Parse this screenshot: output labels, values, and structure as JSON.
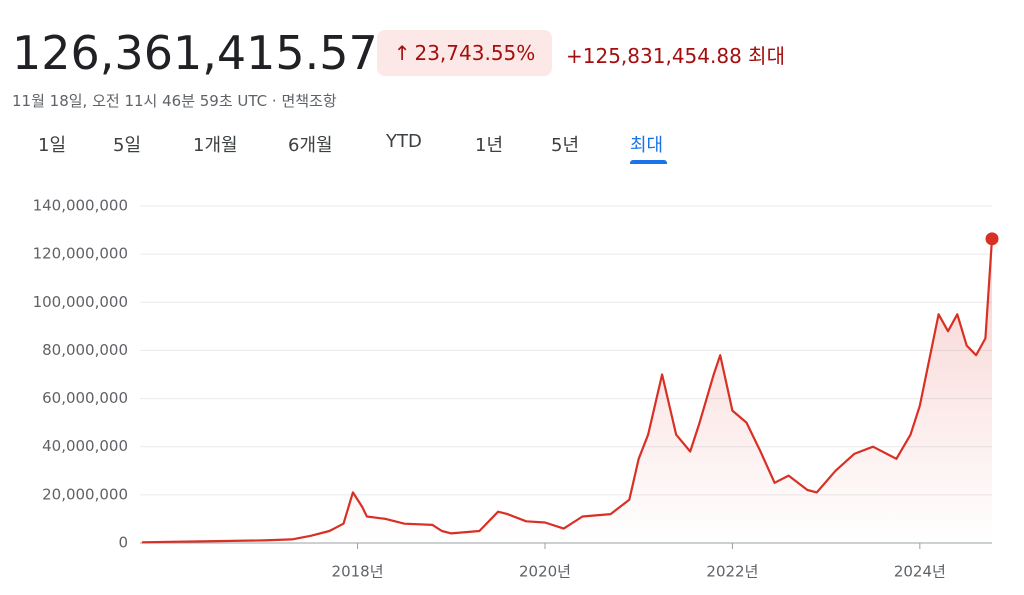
{
  "header": {
    "price": "126,361,415.57",
    "change_percent": "23,743.55%",
    "change_value": "+125,831,454.88",
    "period": "최대",
    "timestamp": "11월 18일, 오전 11시 46분 59초 UTC",
    "disclaimer": "면책조항"
  },
  "tabs": [
    "1일",
    "5일",
    "1개월",
    "6개월",
    "YTD",
    "1년",
    "5년",
    "최대"
  ],
  "chart_data": {
    "type": "line",
    "x": [
      2015.7,
      2016.0,
      2016.5,
      2017.0,
      2017.3,
      2017.5,
      2017.7,
      2017.85,
      2017.95,
      2018.05,
      2018.1,
      2018.3,
      2018.5,
      2018.8,
      2018.9,
      2019.0,
      2019.3,
      2019.5,
      2019.6,
      2019.8,
      2020.0,
      2020.2,
      2020.4,
      2020.7,
      2020.9,
      2021.0,
      2021.1,
      2021.25,
      2021.4,
      2021.55,
      2021.65,
      2021.8,
      2021.87,
      2022.0,
      2022.15,
      2022.3,
      2022.45,
      2022.6,
      2022.8,
      2022.9,
      2023.1,
      2023.3,
      2023.5,
      2023.75,
      2023.9,
      2024.0,
      2024.2,
      2024.3,
      2024.4,
      2024.5,
      2024.6,
      2024.7,
      2024.77
    ],
    "series": [
      {
        "color": "#d93025",
        "values": [
          300000,
          500000,
          800000,
          1100000,
          1500000,
          3000000,
          5000000,
          8000000,
          21000000,
          15000000,
          11000000,
          10000000,
          8000000,
          7500000,
          5000000,
          4000000,
          5000000,
          13000000,
          12000000,
          9000000,
          8500000,
          6000000,
          11000000,
          12000000,
          18000000,
          35000000,
          45000000,
          70000000,
          45000000,
          38000000,
          50000000,
          70000000,
          78000000,
          55000000,
          50000000,
          38000000,
          25000000,
          28000000,
          22000000,
          21000000,
          30000000,
          37000000,
          40000000,
          35000000,
          45000000,
          57000000,
          95000000,
          88000000,
          95000000,
          82000000,
          78000000,
          85000000,
          126361415.57
        ]
      }
    ],
    "xlim": [
      2015.7,
      2024.77
    ],
    "xticks": [
      {
        "value": 2018,
        "label": "2018년"
      },
      {
        "value": 2020,
        "label": "2020년"
      },
      {
        "value": 2022,
        "label": "2022년"
      },
      {
        "value": 2024,
        "label": "2024년"
      }
    ],
    "ylim": [
      0,
      140000000
    ],
    "yticks": [
      0,
      {
        "value": 20000000,
        "label": "20,000,000"
      },
      {
        "value": 40000000,
        "label": "40,000,000"
      },
      {
        "value": 60000000,
        "label": "60,000,000"
      },
      {
        "value": 80000000,
        "label": "80,000,000"
      },
      {
        "value": 100000000,
        "label": "100,000,000"
      },
      {
        "value": 120000000,
        "label": "120,000,000"
      },
      {
        "value": 140000000,
        "label": "140,000,000"
      }
    ],
    "grid": true
  }
}
